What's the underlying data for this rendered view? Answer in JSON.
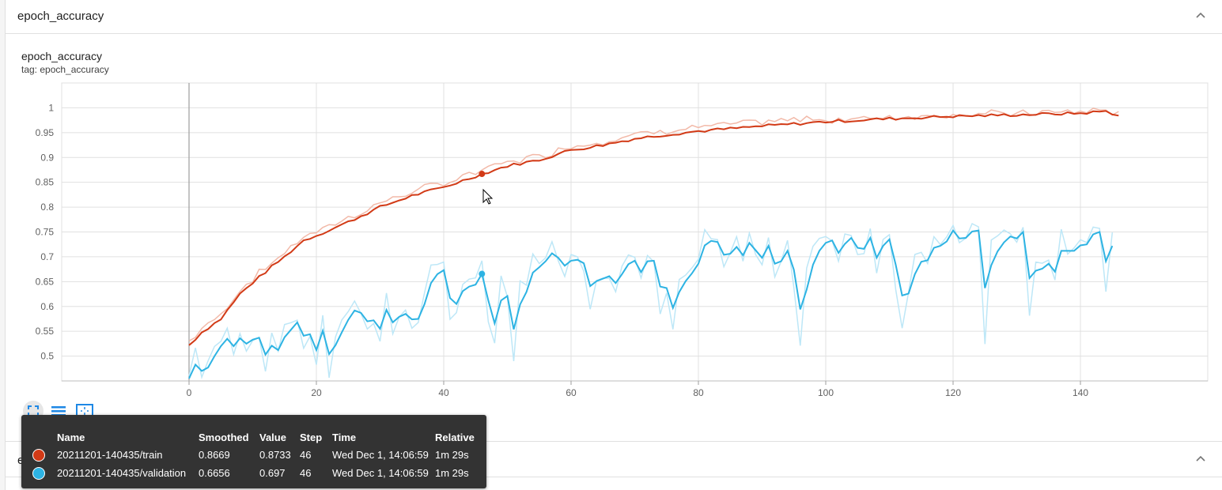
{
  "section_top": {
    "title": "epoch_accuracy"
  },
  "section_bottom": {
    "title": "epoch_loss"
  },
  "chart_header": {
    "title": "epoch_accuracy",
    "tag": "tag: epoch_accuracy"
  },
  "colors": {
    "train": "#d23a16",
    "train_raw": "#f2b9a8",
    "validation": "#2db3e3",
    "validation_raw": "#bde7f7"
  },
  "tooltip": {
    "headers": {
      "name": "Name",
      "smoothed": "Smoothed",
      "value": "Value",
      "step": "Step",
      "time": "Time",
      "relative": "Relative"
    },
    "rows": [
      {
        "name": "20211201-140435/train",
        "smoothed": "0.8669",
        "value": "0.8733",
        "step": "46",
        "time": "Wed Dec 1, 14:06:59",
        "relative": "1m 29s"
      },
      {
        "name": "20211201-140435/validation",
        "smoothed": "0.6656",
        "value": "0.697",
        "step": "46",
        "time": "Wed Dec 1, 14:06:59",
        "relative": "1m 29s"
      }
    ]
  },
  "chart_data": {
    "type": "line",
    "title": "epoch_accuracy",
    "xlabel": "",
    "ylabel": "",
    "xlim": [
      -20,
      160
    ],
    "ylim": [
      0.45,
      1.05
    ],
    "x_ticks": [
      0,
      20,
      40,
      60,
      80,
      100,
      120,
      140
    ],
    "x_tick_labels": [
      "0",
      "20",
      "40",
      "60",
      "80",
      "100",
      "120",
      "140"
    ],
    "y_ticks": [
      0.5,
      0.55,
      0.6,
      0.65,
      0.7,
      0.75,
      0.8,
      0.85,
      0.9,
      0.95,
      1.0
    ],
    "y_tick_labels": [
      "0.5",
      "0.55",
      "0.6",
      "0.65",
      "0.7",
      "0.75",
      "0.8",
      "0.85",
      "0.9",
      "0.95",
      "1"
    ],
    "highlight_step": 46,
    "series": [
      {
        "name": "20211201-140435/train",
        "smoothed_key_x": [
          0,
          2,
          5,
          8,
          10,
          13,
          15,
          18,
          20,
          25,
          30,
          35,
          40,
          46,
          50,
          55,
          60,
          65,
          70,
          75,
          80,
          90,
          100,
          110,
          120,
          130,
          140,
          144,
          146
        ],
        "smoothed_key_y": [
          0.522,
          0.548,
          0.575,
          0.625,
          0.648,
          0.68,
          0.7,
          0.733,
          0.743,
          0.77,
          0.8,
          0.823,
          0.84,
          0.8669,
          0.883,
          0.895,
          0.915,
          0.925,
          0.938,
          0.946,
          0.953,
          0.963,
          0.972,
          0.978,
          0.983,
          0.986,
          0.989,
          0.993,
          0.985
        ],
        "smoothed_wiggle": 0.003,
        "raw_offset_y": 0.008,
        "raw_noise": 0.006
      },
      {
        "name": "20211201-140435/validation",
        "smoothed_x": [
          0,
          1,
          2,
          3,
          4,
          5,
          6,
          7,
          8,
          9,
          10,
          11,
          12,
          13,
          14,
          15,
          16,
          17,
          18,
          19,
          20,
          21,
          22,
          23,
          24,
          25,
          26,
          27,
          28,
          29,
          30,
          31,
          32,
          33,
          34,
          35,
          36,
          37,
          38,
          39,
          40,
          41,
          42,
          43,
          44,
          45,
          46,
          47,
          48,
          49,
          50,
          51,
          52,
          53,
          54,
          55,
          56,
          57,
          58,
          59,
          60,
          61,
          62,
          63,
          64,
          65,
          66,
          67,
          68,
          69,
          70,
          71,
          72,
          73,
          74,
          75,
          76,
          77,
          78,
          79,
          80,
          81,
          82,
          83,
          84,
          85,
          86,
          87,
          88,
          89,
          90,
          91,
          92,
          93,
          94,
          95,
          96,
          97,
          98,
          99,
          100,
          101,
          102,
          103,
          104,
          105,
          106,
          107,
          108,
          109,
          110,
          111,
          112,
          113,
          114,
          115,
          116,
          117,
          118,
          119,
          120,
          121,
          122,
          123,
          124,
          125,
          126,
          127,
          128,
          129,
          130,
          131,
          132,
          133,
          134,
          135,
          136,
          137,
          138,
          139,
          140,
          141,
          142,
          143,
          144,
          145,
          146
        ],
        "smoothed_y": [
          0.455,
          0.483,
          0.47,
          0.477,
          0.5,
          0.52,
          0.535,
          0.52,
          0.536,
          0.525,
          0.533,
          0.537,
          0.503,
          0.521,
          0.512,
          0.538,
          0.553,
          0.568,
          0.541,
          0.544,
          0.512,
          0.551,
          0.504,
          0.522,
          0.548,
          0.573,
          0.592,
          0.587,
          0.57,
          0.572,
          0.555,
          0.593,
          0.568,
          0.579,
          0.585,
          0.574,
          0.575,
          0.605,
          0.647,
          0.665,
          0.673,
          0.617,
          0.605,
          0.631,
          0.64,
          0.644,
          0.6656,
          0.612,
          0.566,
          0.612,
          0.621,
          0.554,
          0.604,
          0.629,
          0.668,
          0.679,
          0.691,
          0.707,
          0.698,
          0.682,
          0.692,
          0.694,
          0.687,
          0.641,
          0.651,
          0.656,
          0.661,
          0.647,
          0.665,
          0.685,
          0.692,
          0.669,
          0.691,
          0.692,
          0.64,
          0.637,
          0.597,
          0.629,
          0.651,
          0.667,
          0.686,
          0.723,
          0.732,
          0.73,
          0.704,
          0.706,
          0.72,
          0.703,
          0.728,
          0.713,
          0.698,
          0.722,
          0.686,
          0.691,
          0.712,
          0.674,
          0.594,
          0.634,
          0.684,
          0.712,
          0.728,
          0.733,
          0.708,
          0.726,
          0.738,
          0.718,
          0.716,
          0.738,
          0.698,
          0.722,
          0.735,
          0.684,
          0.622,
          0.626,
          0.665,
          0.69,
          0.693,
          0.718,
          0.722,
          0.731,
          0.753,
          0.737,
          0.738,
          0.751,
          0.753,
          0.637,
          0.683,
          0.711,
          0.729,
          0.741,
          0.737,
          0.75,
          0.657,
          0.672,
          0.676,
          0.686,
          0.67,
          0.712,
          0.712,
          0.712,
          0.723,
          0.725,
          0.745,
          0.75,
          0.691,
          0.722
        ],
        "raw_amplification": 1.9
      }
    ]
  }
}
